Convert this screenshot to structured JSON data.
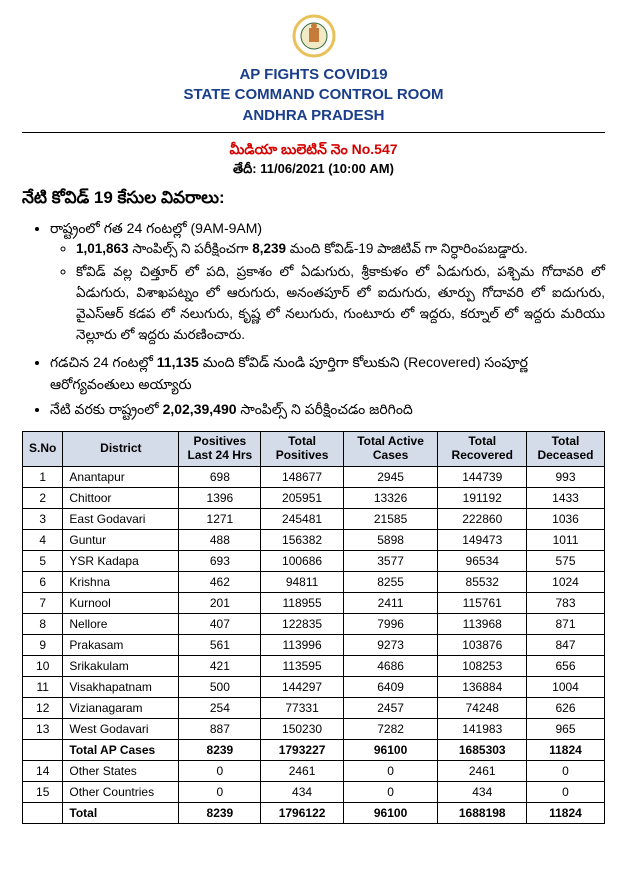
{
  "emblem": {
    "ring": "#e8c15a",
    "inner": "#2d6a3a"
  },
  "header": {
    "line1": "AP FIGHTS COVID19",
    "line2": "STATE COMMAND CONTROL ROOM",
    "line3": "ANDHRA PRADESH"
  },
  "bulletin": {
    "red": "మీడియా బులెటిన్ నెం No.547",
    "date_label": "తేదీ:",
    "date_value": "11/06/2021 (10:00 AM)"
  },
  "section_title": "నేటి కోవిడ్ 19 కేసుల వివరాలు:",
  "bullets": {
    "b1": "రాష్ట్రంలో గత 24 గంటల్లో (9AM-9AM)",
    "b1a_pre": "1,01,863",
    "b1a_mid": " సాంపిల్స్ ని పరీక్షించగా ",
    "b1a_bold2": "8,239",
    "b1a_post": " మంది కోవిడ్-19 పాజిటివ్ గా నిర్ధారింపబడ్డారు.",
    "b1b": "కోవిడ్ వల్ల చిత్తూర్ లో పది, ప్రకాశం లో ఏడుగురు, శ్రీకాకుళం లో ఏడుగురు, పశ్చిమ గోదావరి లో ఏడుగురు, విశాఖపట్నం లో ఆరుగురు, అనంతపూర్ లో ఐదుగురు, తూర్పు గోదావరి లో ఐదుగురు, వైఎస్ఆర్ కడప లో నలుగురు, కృష్ణ లో నలుగురు, గుంటూరు లో ఇద్దరు, కర్నూల్ లో ఇద్దరు మరియు నెల్లూరు లో ఇద్దరు మరణించారు.",
    "b2_pre": "గడచిన 24 గంటల్లో ",
    "b2_bold": "11,135",
    "b2_post": " మంది కోవిడ్ నుండి పూర్తిగా కోలుకుని (Recovered) సంపూర్ణ ఆరోగ్యవంతులు అయ్యారు",
    "b3_pre": "నేటి వరకు రాష్ట్రంలో ",
    "b3_bold": "2,02,39,490",
    "b3_post": "  సాంపిల్స్ ని పరీక్షించడం జరిగింది"
  },
  "table": {
    "headers": [
      "S.No",
      "District",
      "Positives Last 24 Hrs",
      "Total Positives",
      "Total Active Cases",
      "Total Recovered",
      "Total Deceased"
    ],
    "rows": [
      [
        "1",
        "Anantapur",
        "698",
        "148677",
        "2945",
        "144739",
        "993"
      ],
      [
        "2",
        "Chittoor",
        "1396",
        "205951",
        "13326",
        "191192",
        "1433"
      ],
      [
        "3",
        "East Godavari",
        "1271",
        "245481",
        "21585",
        "222860",
        "1036"
      ],
      [
        "4",
        "Guntur",
        "488",
        "156382",
        "5898",
        "149473",
        "1011"
      ],
      [
        "5",
        "YSR Kadapa",
        "693",
        "100686",
        "3577",
        "96534",
        "575"
      ],
      [
        "6",
        "Krishna",
        "462",
        "94811",
        "8255",
        "85532",
        "1024"
      ],
      [
        "7",
        "Kurnool",
        "201",
        "118955",
        "2411",
        "115761",
        "783"
      ],
      [
        "8",
        "Nellore",
        "407",
        "122835",
        "7996",
        "113968",
        "871"
      ],
      [
        "9",
        "Prakasam",
        "561",
        "113996",
        "9273",
        "103876",
        "847"
      ],
      [
        "10",
        "Srikakulam",
        "421",
        "113595",
        "4686",
        "108253",
        "656"
      ],
      [
        "11",
        "Visakhapatnam",
        "500",
        "144297",
        "6409",
        "136884",
        "1004"
      ],
      [
        "12",
        "Vizianagaram",
        "254",
        "77331",
        "2457",
        "74248",
        "626"
      ],
      [
        "13",
        "West Godavari",
        "887",
        "150230",
        "7282",
        "141983",
        "965"
      ]
    ],
    "subtotal": [
      "",
      "Total AP Cases",
      "8239",
      "1793227",
      "96100",
      "1685303",
      "11824"
    ],
    "extra": [
      [
        "14",
        "Other States",
        "0",
        "2461",
        "0",
        "2461",
        "0"
      ],
      [
        "15",
        "Other Countries",
        "0",
        "434",
        "0",
        "434",
        "0"
      ]
    ],
    "total": [
      "",
      "Total",
      "8239",
      "1796122",
      "96100",
      "1688198",
      "11824"
    ]
  }
}
